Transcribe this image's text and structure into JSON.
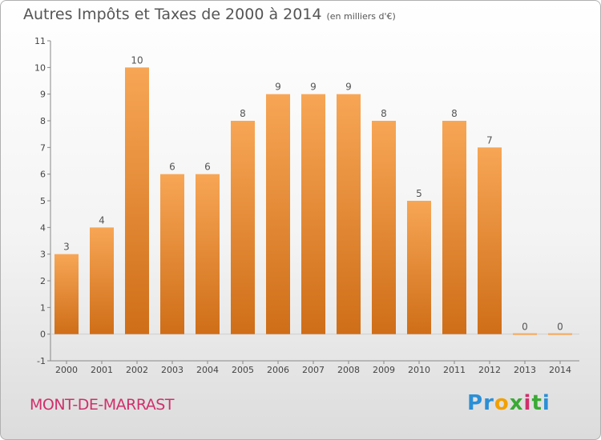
{
  "header": {
    "title": "Autres Impôts et Taxes de 2000 à 2014",
    "subtitle": "(en milliers d'€)"
  },
  "footer": {
    "commune": "MONT-DE-MARRAST",
    "logo_letters": [
      "P",
      "r",
      "o",
      "x",
      "i",
      "t",
      "i"
    ],
    "logo_colors": [
      "#2a8fd6",
      "#2a8fd6",
      "#f2a000",
      "#3aaa35",
      "#d0306a",
      "#3aaa35",
      "#2a8fd6"
    ]
  },
  "chart_data": {
    "type": "bar",
    "categories": [
      "2000",
      "2001",
      "2002",
      "2003",
      "2004",
      "2005",
      "2006",
      "2007",
      "2008",
      "2009",
      "2010",
      "2011",
      "2012",
      "2013",
      "2014"
    ],
    "values": [
      3,
      4,
      10,
      6,
      6,
      8,
      9,
      9,
      9,
      8,
      5,
      8,
      7,
      0,
      0
    ],
    "data_labels": [
      "3",
      "4",
      "10",
      "6",
      "6",
      "8",
      "9",
      "9",
      "9",
      "8",
      "5",
      "8",
      "7",
      "0",
      "0"
    ],
    "yticks": [
      -1,
      0,
      1,
      2,
      3,
      4,
      5,
      6,
      7,
      8,
      9,
      10,
      11
    ],
    "ylim": [
      -1,
      11
    ],
    "grid": false,
    "bar_color_top": "#f7a655",
    "bar_color_bottom": "#cf6e18",
    "title": "Autres Impôts et Taxes de 2000 à 2014",
    "xlabel": "",
    "ylabel": ""
  }
}
